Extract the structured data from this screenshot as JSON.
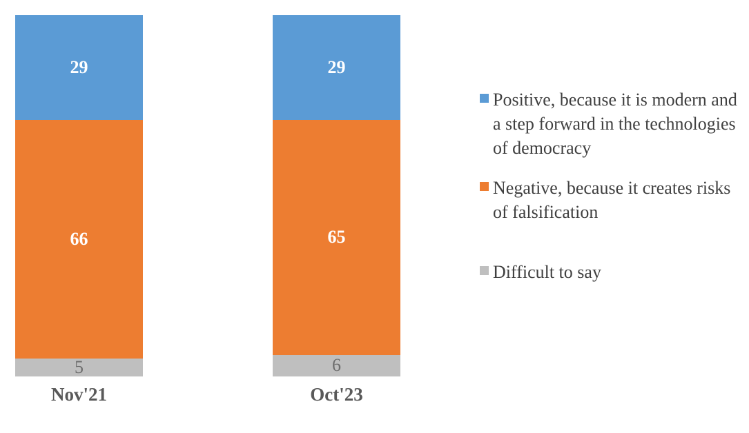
{
  "chart_data": {
    "type": "bar",
    "stacked": true,
    "orientation": "vertical",
    "title": "",
    "xlabel": "",
    "ylabel": "",
    "ylim": [
      0,
      100
    ],
    "grid": false,
    "legend_position": "right",
    "data_labels": true,
    "categories": [
      "Nov'21",
      "Oct'23"
    ],
    "series": [
      {
        "name": "Positive, because it is modern and a step forward in the technologies of democracy",
        "values": [
          29,
          29
        ],
        "color": "#5B9BD5",
        "label_color": "#FFFFFF",
        "label_bold": true
      },
      {
        "name": "Negative, because it creates risks of falsification",
        "values": [
          66,
          65
        ],
        "color": "#ED7D31",
        "label_color": "#FFFFFF",
        "label_bold": true
      },
      {
        "name": "Difficult to say",
        "values": [
          5,
          6
        ],
        "color": "#BFBFBF",
        "label_color": "#6E6E6E",
        "label_bold": false
      }
    ],
    "category_label_color": "#595959",
    "legend_text_color": "#404040",
    "background_color": "#FFFFFF"
  }
}
